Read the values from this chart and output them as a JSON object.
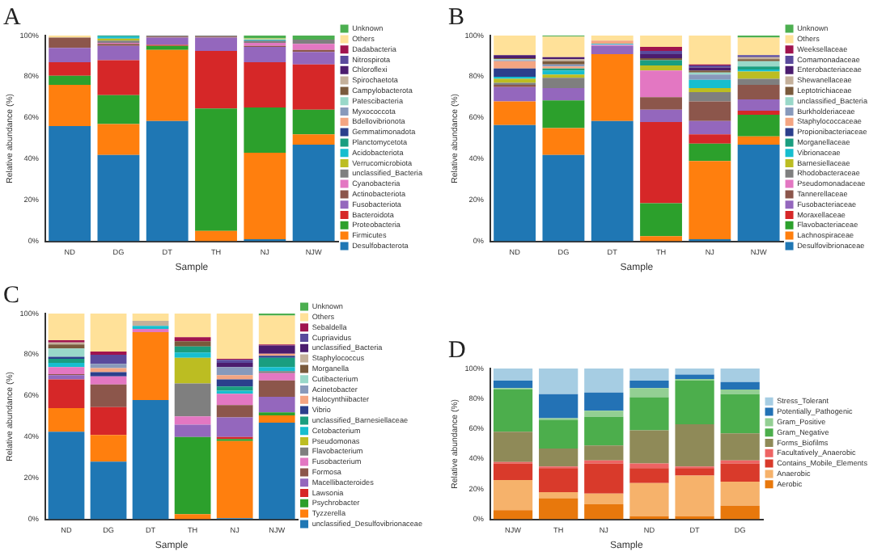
{
  "chart_data": [
    {
      "type": "bar",
      "title": "A",
      "xlabel": "Sample",
      "ylabel": "Relative abundance (%)",
      "stacked": true,
      "legend": "right",
      "grid": false,
      "ylim": [
        0,
        100
      ],
      "yticks": [
        {
          "value": 0,
          "label": "0%"
        },
        {
          "value": 20,
          "label": "20%"
        },
        {
          "value": 40,
          "label": "40%"
        },
        {
          "value": 60,
          "label": "60%"
        },
        {
          "value": 80,
          "label": "80%"
        },
        {
          "value": 100,
          "label": "100%"
        }
      ],
      "categories": [
        "ND",
        "DG",
        "DT",
        "TH",
        "NJ",
        "NJW"
      ],
      "series": [
        {
          "name": "Desulfobacterota",
          "color": "#1f77b4",
          "values": [
            56,
            42,
            58.5,
            0,
            1,
            47
          ]
        },
        {
          "name": "Firmicutes",
          "color": "#ff7f0e",
          "values": [
            20,
            15,
            34.5,
            5,
            42,
            5
          ]
        },
        {
          "name": "Proteobacteria",
          "color": "#2ca02c",
          "values": [
            4.5,
            14,
            2,
            59.5,
            22,
            12
          ]
        },
        {
          "name": "Bacteroidota",
          "color": "#d62728",
          "values": [
            6.5,
            17,
            0.5,
            28,
            22,
            22
          ]
        },
        {
          "name": "Fusobacteriota",
          "color": "#9467bd",
          "values": [
            7,
            7,
            3.5,
            6.5,
            7.5,
            6
          ]
        },
        {
          "name": "Actinobacteriota",
          "color": "#8c564b",
          "values": [
            5,
            1,
            0.5,
            0.5,
            0.5,
            1
          ]
        },
        {
          "name": "Cyanobacteria",
          "color": "#e377c2",
          "values": [
            0,
            0.5,
            0,
            0,
            1.5,
            3
          ]
        },
        {
          "name": "unclassified_Bacteria",
          "color": "#7f7f7f",
          "values": [
            0,
            1,
            0.5,
            0.5,
            1,
            2
          ]
        },
        {
          "name": "Verrucomicrobiota",
          "color": "#bcbd22",
          "values": [
            0,
            1,
            0,
            0,
            0,
            0
          ]
        },
        {
          "name": "Acidobacteriota",
          "color": "#17becf",
          "values": [
            0,
            1,
            0,
            0,
            0.5,
            0
          ]
        },
        {
          "name": "Planctomycetota",
          "color": "#1a9e80",
          "values": [
            0,
            0.5,
            0,
            0,
            0,
            0
          ]
        },
        {
          "name": "Gemmatimonadota",
          "color": "#2b3f8c",
          "values": [
            0,
            0,
            0,
            0,
            0,
            0
          ]
        },
        {
          "name": "Bdellovibrionota",
          "color": "#f4a582",
          "values": [
            0,
            0,
            0,
            0,
            0,
            0
          ]
        },
        {
          "name": "Myxococcota",
          "color": "#8899bb",
          "values": [
            0,
            0,
            0,
            0,
            0,
            0
          ]
        },
        {
          "name": "Patescibacteria",
          "color": "#99d8c9",
          "values": [
            0,
            0,
            0,
            0,
            0,
            0
          ]
        },
        {
          "name": "Campylobacterota",
          "color": "#7a5a3c",
          "values": [
            0,
            0,
            0,
            0,
            0,
            0
          ]
        },
        {
          "name": "Spirochaetota",
          "color": "#c4b09a",
          "values": [
            0,
            0,
            0,
            0,
            0,
            0
          ]
        },
        {
          "name": "Chloroflexi",
          "color": "#4b1c6e",
          "values": [
            0,
            0,
            0,
            0,
            0,
            0
          ]
        },
        {
          "name": "Nitrospirota",
          "color": "#5a4a9c",
          "values": [
            0,
            0,
            0,
            0,
            0,
            0
          ]
        },
        {
          "name": "Dadabacteria",
          "color": "#a0144e",
          "values": [
            0,
            0,
            0,
            0,
            0,
            0
          ]
        },
        {
          "name": "Others",
          "color": "#ffe199",
          "values": [
            1,
            0,
            0,
            0,
            0.5,
            0
          ]
        },
        {
          "name": "Unknown",
          "color": "#4caf50",
          "values": [
            0,
            0,
            0,
            0,
            1.5,
            2
          ]
        }
      ]
    },
    {
      "type": "bar",
      "title": "B",
      "xlabel": "Sample",
      "ylabel": "Relative abundance (%)",
      "stacked": true,
      "legend": "right",
      "grid": false,
      "ylim": [
        0,
        100
      ],
      "yticks": [
        {
          "value": 0,
          "label": "0%"
        },
        {
          "value": 20,
          "label": "20%"
        },
        {
          "value": 40,
          "label": "40%"
        },
        {
          "value": 60,
          "label": "60%"
        },
        {
          "value": 80,
          "label": "80%"
        },
        {
          "value": 100,
          "label": "100%"
        }
      ],
      "categories": [
        "ND",
        "DG",
        "DT",
        "TH",
        "NJ",
        "NJW"
      ],
      "series": [
        {
          "name": "Desulfovibrionaceae",
          "color": "#1f77b4",
          "values": [
            56.5,
            42,
            58.5,
            0,
            1,
            47
          ]
        },
        {
          "name": "Lachnospiraceae",
          "color": "#ff7f0e",
          "values": [
            11.5,
            13,
            32.5,
            2.5,
            38,
            4
          ]
        },
        {
          "name": "Flavobacteriaceae",
          "color": "#2ca02c",
          "values": [
            0,
            13.5,
            0,
            16,
            8.5,
            10.5
          ]
        },
        {
          "name": "Moraxellaceae",
          "color": "#d62728",
          "values": [
            0,
            0,
            0,
            39.5,
            4.5,
            2
          ]
        },
        {
          "name": "Fusobacteriaceae",
          "color": "#9467bd",
          "values": [
            7,
            6,
            4,
            6,
            6.5,
            5.5
          ]
        },
        {
          "name": "Tannerellaceae",
          "color": "#8c564b",
          "values": [
            1,
            0,
            0,
            6,
            9.5,
            7
          ]
        },
        {
          "name": "Pseudomonadaceae",
          "color": "#e377c2",
          "values": [
            0,
            0,
            0.5,
            13,
            0,
            0
          ]
        },
        {
          "name": "Rhodobacteraceae",
          "color": "#7f7f7f",
          "values": [
            1,
            5,
            0,
            0,
            4.5,
            3
          ]
        },
        {
          "name": "Barnesiellaceae",
          "color": "#bcbd22",
          "values": [
            2,
            1.5,
            0,
            2.5,
            2,
            3.5
          ]
        },
        {
          "name": "Vibrionaceae",
          "color": "#17becf",
          "values": [
            1,
            2,
            0.5,
            0,
            4,
            1
          ]
        },
        {
          "name": "Morganellaceae",
          "color": "#1a9e80",
          "values": [
            0,
            1,
            0,
            2.5,
            0,
            1.5
          ]
        },
        {
          "name": "Propionibacteriaceae",
          "color": "#2b3f8c",
          "values": [
            4,
            0,
            0,
            0,
            0,
            0
          ]
        },
        {
          "name": "Staphylococcaceae",
          "color": "#f4a582",
          "values": [
            3.5,
            1,
            1.5,
            0,
            0,
            0
          ]
        },
        {
          "name": "Burkholderiaceae",
          "color": "#8899bb",
          "values": [
            0.5,
            1,
            0,
            0,
            2.5,
            0
          ]
        },
        {
          "name": "unclassified_Bacteria",
          "color": "#99d8c9",
          "values": [
            0.5,
            0,
            0,
            0,
            1,
            2.5
          ]
        },
        {
          "name": "Leptotrichiaceae",
          "color": "#7a5a3c",
          "values": [
            0.5,
            1.5,
            0,
            1,
            1,
            1
          ]
        },
        {
          "name": "Shewanellaceae",
          "color": "#c4b09a",
          "values": [
            0,
            1,
            0,
            0,
            0,
            1
          ]
        },
        {
          "name": "Enterobacteriaceae",
          "color": "#4b1c6e",
          "values": [
            1.5,
            1,
            0,
            2,
            1.5,
            0
          ]
        },
        {
          "name": "Comamonadaceae",
          "color": "#5a4a9c",
          "values": [
            0,
            0,
            0,
            1.5,
            1,
            1
          ]
        },
        {
          "name": "Weeksellaceae",
          "color": "#a0144e",
          "values": [
            0,
            0,
            0,
            2,
            0.5,
            0
          ]
        },
        {
          "name": "Others",
          "color": "#ffe199",
          "values": [
            9.5,
            10,
            2.5,
            5.5,
            14,
            8.5
          ]
        },
        {
          "name": "Unknown",
          "color": "#4caf50",
          "values": [
            0,
            0.5,
            0,
            0,
            0,
            1
          ]
        }
      ]
    },
    {
      "type": "bar",
      "title": "C",
      "xlabel": "Sample",
      "ylabel": "Relative abundance (%)",
      "stacked": true,
      "legend": "right",
      "grid": false,
      "ylim": [
        0,
        100
      ],
      "yticks": [
        {
          "value": 0,
          "label": "0%"
        },
        {
          "value": 20,
          "label": "20%"
        },
        {
          "value": 40,
          "label": "40%"
        },
        {
          "value": 60,
          "label": "60%"
        },
        {
          "value": 80,
          "label": "80%"
        },
        {
          "value": 100,
          "label": "100%"
        }
      ],
      "categories": [
        "ND",
        "DG",
        "DT",
        "TH",
        "NJ",
        "NJW"
      ],
      "series": [
        {
          "name": "unclassified_Desulfovibrionaceae",
          "color": "#1f77b4",
          "values": [
            42.5,
            28,
            58,
            0,
            0.5,
            47
          ]
        },
        {
          "name": "Tyzzerella",
          "color": "#ff7f0e",
          "values": [
            11.5,
            13,
            33,
            2.5,
            37.5,
            3.5
          ]
        },
        {
          "name": "Psychrobacter",
          "color": "#2ca02c",
          "values": [
            0,
            0,
            0,
            37.5,
            1,
            1.5
          ]
        },
        {
          "name": "Lawsonia",
          "color": "#d62728",
          "values": [
            14,
            13.5,
            0,
            0,
            1,
            0
          ]
        },
        {
          "name": "Macellibacteroides",
          "color": "#9467bd",
          "values": [
            2,
            0,
            0,
            6,
            9.5,
            7.5
          ]
        },
        {
          "name": "Formosa",
          "color": "#8c564b",
          "values": [
            0.5,
            11,
            0,
            0,
            6,
            8
          ]
        },
        {
          "name": "Fusobacterium",
          "color": "#e377c2",
          "values": [
            3.5,
            4,
            1.5,
            4,
            5.5,
            3.5
          ]
        },
        {
          "name": "Flavobacterium",
          "color": "#7f7f7f",
          "values": [
            0,
            0,
            0,
            16,
            0,
            1
          ]
        },
        {
          "name": "Pseudomonas",
          "color": "#bcbd22",
          "values": [
            0,
            0,
            0,
            12.5,
            0,
            0
          ]
        },
        {
          "name": "Cetobacterium",
          "color": "#17becf",
          "values": [
            2,
            0,
            1.5,
            2.5,
            1.5,
            2
          ]
        },
        {
          "name": "unclassified_Barnesiellaceae",
          "color": "#1a9e80",
          "values": [
            2,
            0,
            0,
            3,
            2,
            4.5
          ]
        },
        {
          "name": "Vibrio",
          "color": "#2b3f8c",
          "values": [
            1,
            2,
            0,
            0,
            3.5,
            1
          ]
        },
        {
          "name": "Halocynthiibacter",
          "color": "#f4a582",
          "values": [
            0,
            2,
            0,
            0,
            2,
            1
          ]
        },
        {
          "name": "Acinetobacter",
          "color": "#8899bb",
          "values": [
            0,
            2,
            0,
            0,
            4,
            0
          ]
        },
        {
          "name": "Cutibacterium",
          "color": "#99d8c9",
          "values": [
            4,
            0,
            0,
            0,
            0,
            0
          ]
        },
        {
          "name": "Morganella",
          "color": "#7a5a3c",
          "values": [
            2,
            0,
            0,
            2.5,
            0,
            0
          ]
        },
        {
          "name": "Staphylococcus",
          "color": "#c4b09a",
          "values": [
            1,
            0,
            2.5,
            0,
            0,
            0
          ]
        },
        {
          "name": "unclassified_Bacteria",
          "color": "#4b1c6e",
          "values": [
            0,
            0,
            0,
            0,
            2,
            4
          ]
        },
        {
          "name": "Cupriavidus",
          "color": "#5a4a9c",
          "values": [
            0,
            4.5,
            0,
            0,
            1.5,
            0
          ]
        },
        {
          "name": "Sebaldella",
          "color": "#a0144e",
          "values": [
            1,
            1.5,
            0,
            2,
            0.5,
            0.5
          ]
        },
        {
          "name": "Others",
          "color": "#ffe199",
          "values": [
            13,
            18.5,
            3.5,
            11.5,
            22,
            14
          ]
        },
        {
          "name": "Unknown",
          "color": "#4caf50",
          "values": [
            0,
            0,
            0,
            0,
            0,
            1
          ]
        }
      ]
    },
    {
      "type": "bar",
      "title": "D",
      "xlabel": "Sample",
      "ylabel": "Relative abundance (%)",
      "stacked": true,
      "legend": "right",
      "grid": false,
      "ylim": [
        0,
        100
      ],
      "yticks": [
        {
          "value": 0,
          "label": "0%"
        },
        {
          "value": 20,
          "label": "20%"
        },
        {
          "value": 40,
          "label": "40%"
        },
        {
          "value": 60,
          "label": "60%"
        },
        {
          "value": 80,
          "label": "80%"
        },
        {
          "value": 100,
          "label": "100%"
        }
      ],
      "categories": [
        "NJW",
        "TH",
        "NJ",
        "ND",
        "DT",
        "DG"
      ],
      "series": [
        {
          "name": "Aerobic",
          "color": "#e8780c",
          "values": [
            6,
            14,
            10,
            2,
            2,
            9
          ]
        },
        {
          "name": "Anaerobic",
          "color": "#f6b26b",
          "values": [
            20,
            4,
            7,
            22,
            27,
            16
          ]
        },
        {
          "name": "Contains_Mobile_Elements",
          "color": "#d93a2b",
          "values": [
            11,
            16,
            20,
            10,
            5,
            12
          ]
        },
        {
          "name": "Facultatively_Anaerobic",
          "color": "#ee6464",
          "values": [
            1,
            1,
            2,
            3,
            1,
            2
          ]
        },
        {
          "name": "Forms_Biofilms",
          "color": "#8f8a58",
          "values": [
            20,
            12,
            10,
            22,
            28,
            18
          ]
        },
        {
          "name": "Gram_Negative",
          "color": "#4cae4c",
          "values": [
            28,
            19,
            19,
            22,
            29,
            26
          ]
        },
        {
          "name": "Gram_Positive",
          "color": "#93cf93",
          "values": [
            1,
            1,
            4,
            6,
            1,
            3
          ]
        },
        {
          "name": "Potentially_Pathogenic",
          "color": "#2372b5",
          "values": [
            5,
            16,
            12,
            5,
            3,
            5
          ]
        },
        {
          "name": "Stress_Tolerant",
          "color": "#a6cde3",
          "values": [
            8,
            17,
            16,
            8,
            4,
            9
          ]
        }
      ]
    }
  ]
}
